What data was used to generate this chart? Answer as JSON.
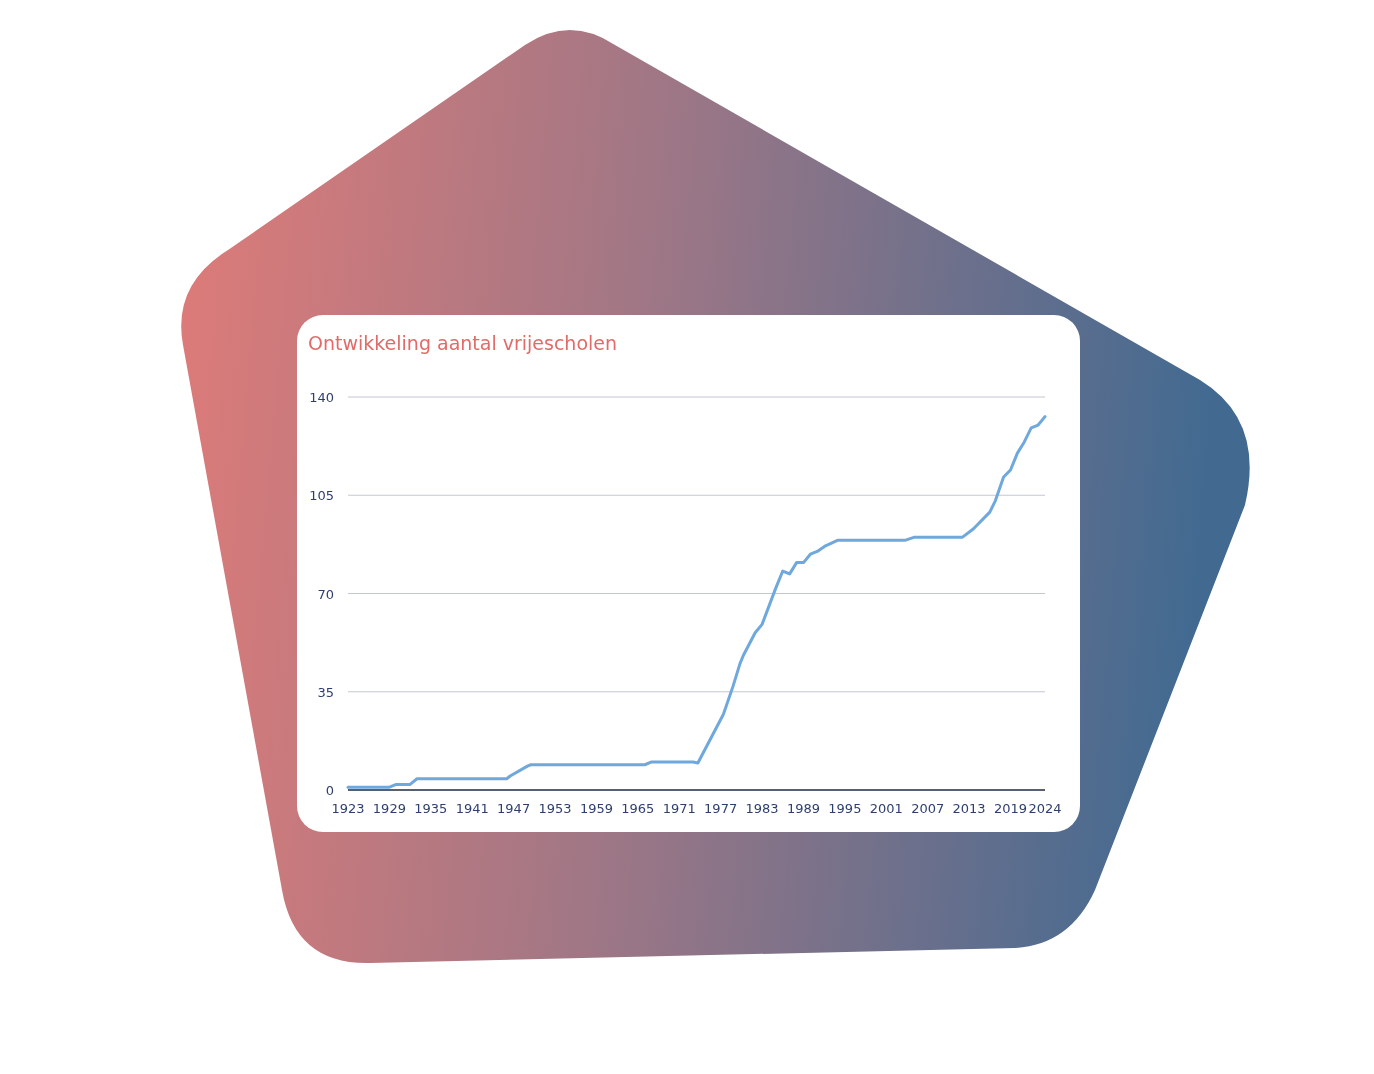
{
  "chart_data": {
    "type": "line",
    "title": "Ontwikkeling aantal vrijescholen",
    "x": [
      1923,
      1929,
      1930,
      1931.5,
      1932,
      1933,
      1945,
      1946,
      1946.5,
      1949,
      1949.5,
      1966,
      1967,
      1973,
      1973.7,
      1977.4,
      1978.8,
      1979.8,
      1980.3,
      1982,
      1983,
      1985,
      1986,
      1987,
      1988,
      1989,
      1990,
      1991,
      1992.2,
      1994,
      2003.8,
      2005,
      2012,
      2013.6,
      2016,
      2016.8,
      2018,
      2019,
      2020,
      2021,
      2022,
      2023,
      2024
    ],
    "series": [
      {
        "color": "#6fa8dc",
        "values": [
          1,
          1,
          2,
          2,
          2,
          4,
          4,
          4,
          5,
          8.5,
          9,
          9,
          10,
          10,
          9.6,
          27,
          37,
          45,
          48,
          56,
          59,
          72,
          78,
          77,
          81,
          81,
          84,
          85,
          87,
          89,
          89,
          90,
          90,
          93,
          99,
          103,
          111.5,
          114,
          120,
          124,
          129,
          130,
          133
        ]
      }
    ],
    "xlim": [
      1923,
      2024
    ],
    "xticks": [
      1923,
      1929,
      1935,
      1941,
      1947,
      1953,
      1959,
      1965,
      1971,
      1977,
      1983,
      1989,
      1995,
      2001,
      2007,
      2013,
      2019,
      2024
    ],
    "ylim": [
      0,
      140
    ],
    "yticks": [
      0,
      35,
      70,
      105,
      140
    ],
    "grid": "y",
    "marker": "none",
    "line_style": "solid"
  }
}
